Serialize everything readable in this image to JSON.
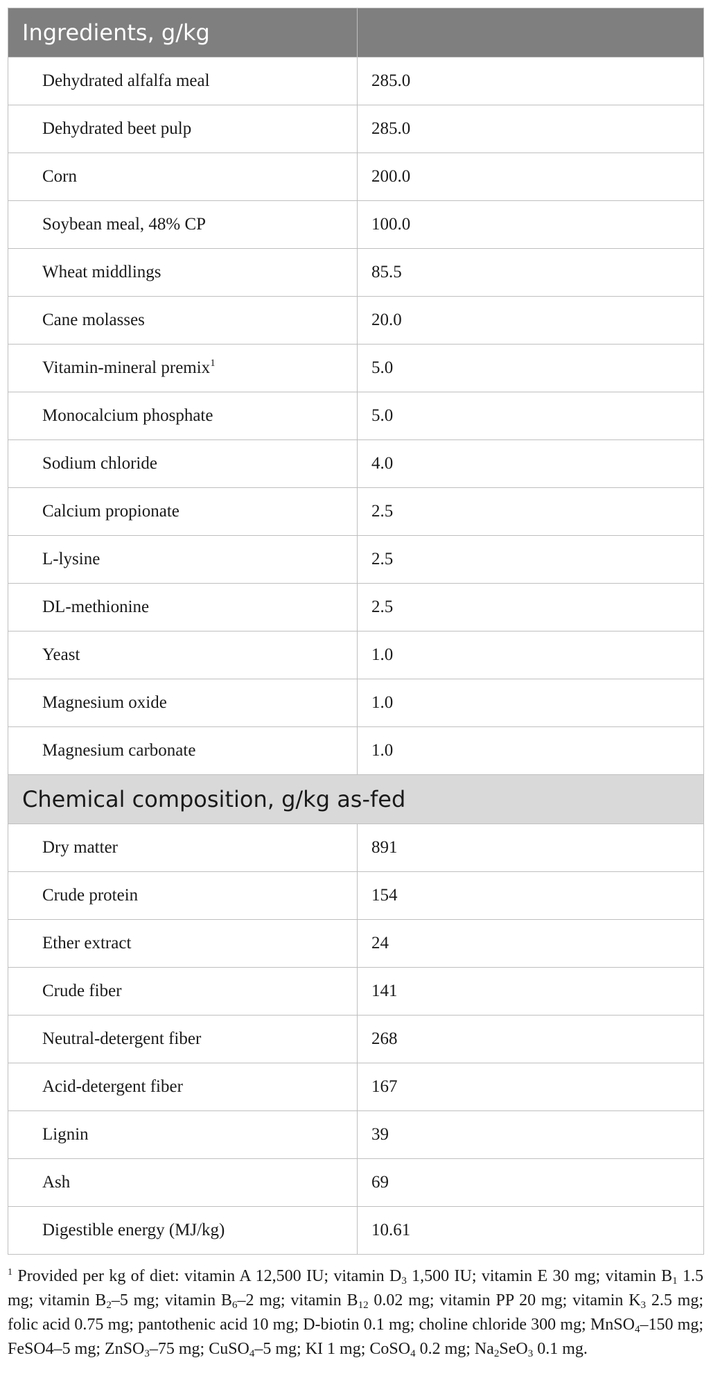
{
  "table": {
    "header_ingredients": "Ingredients, g/kg",
    "ingredients": [
      {
        "name": "Dehydrated alfalfa meal",
        "value": "285.0"
      },
      {
        "name": "Dehydrated beet pulp",
        "value": "285.0"
      },
      {
        "name": "Corn",
        "value": "200.0"
      },
      {
        "name": "Soybean meal, 48% CP",
        "value": "100.0"
      },
      {
        "name": "Wheat middlings",
        "value": "85.5"
      },
      {
        "name": "Cane molasses",
        "value": "20.0"
      },
      {
        "name": "Vitamin-mineral premix",
        "value": "5.0",
        "footnote_ref": "1"
      },
      {
        "name": "Monocalcium phosphate",
        "value": "5.0"
      },
      {
        "name": "Sodium chloride",
        "value": "4.0"
      },
      {
        "name": "Calcium propionate",
        "value": "2.5"
      },
      {
        "name": "L-lysine",
        "value": "2.5"
      },
      {
        "name": "DL-methionine",
        "value": "2.5"
      },
      {
        "name": "Yeast",
        "value": "1.0"
      },
      {
        "name": "Magnesium oxide",
        "value": "1.0"
      },
      {
        "name": "Magnesium carbonate",
        "value": "1.0"
      }
    ],
    "header_composition": "Chemical composition, g/kg as-fed",
    "composition": [
      {
        "name": "Dry matter",
        "value": "891"
      },
      {
        "name": "Crude protein",
        "value": "154"
      },
      {
        "name": "Ether extract",
        "value": "24"
      },
      {
        "name": "Crude fiber",
        "value": "141"
      },
      {
        "name": "Neutral-detergent fiber",
        "value": "268"
      },
      {
        "name": "Acid-detergent fiber",
        "value": "167"
      },
      {
        "name": "Lignin",
        "value": "39"
      },
      {
        "name": "Ash",
        "value": "69"
      },
      {
        "name": "Digestible energy (MJ/kg)",
        "value": "10.61"
      }
    ]
  },
  "footnote": {
    "marker": "1",
    "segments": [
      {
        "t": "Provided per kg of diet: vitamin A 12,500 IU; vitamin D"
      },
      {
        "t": "3",
        "sub": true
      },
      {
        "t": " 1,500 IU; vitamin E 30 mg; vitamin B"
      },
      {
        "t": "1",
        "sub": true
      },
      {
        "t": " 1.5 mg; vitamin B"
      },
      {
        "t": "2",
        "sub": true
      },
      {
        "t": "–5 mg; vitamin B"
      },
      {
        "t": "6",
        "sub": true
      },
      {
        "t": "–2 mg; vitamin B"
      },
      {
        "t": "12",
        "sub": true
      },
      {
        "t": " 0.02 mg; vitamin PP 20 mg; vitamin K"
      },
      {
        "t": "3",
        "sub": true
      },
      {
        "t": " 2.5 mg; folic acid 0.75 mg; pantothenic acid 10 mg; D-biotin 0.1 mg; choline chloride 300 mg; MnSO"
      },
      {
        "t": "4",
        "sub": true
      },
      {
        "t": "–150 mg; FeSO4–5 mg; ZnSO"
      },
      {
        "t": "3",
        "sub": true
      },
      {
        "t": "–75 mg; CuSO"
      },
      {
        "t": "4",
        "sub": true
      },
      {
        "t": "–5 mg; KI 1 mg; CoSO"
      },
      {
        "t": "4",
        "sub": true
      },
      {
        "t": " 0.2 mg; Na"
      },
      {
        "t": "2",
        "sub": true
      },
      {
        "t": "SeO"
      },
      {
        "t": "3",
        "sub": true
      },
      {
        "t": " 0.1 mg."
      }
    ]
  }
}
